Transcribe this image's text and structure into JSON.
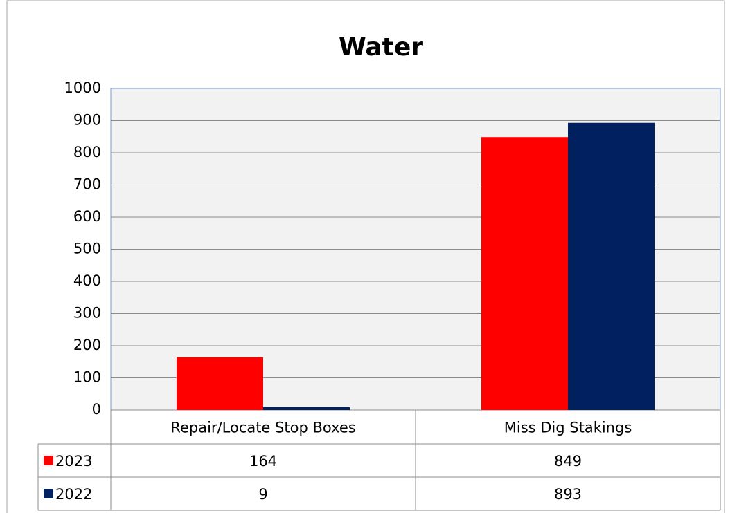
{
  "chart_data": {
    "type": "bar",
    "title": "Water",
    "categories": [
      "Repair/Locate Stop Boxes",
      "Miss Dig Stakings"
    ],
    "series": [
      {
        "name": "2023",
        "color": "#ff0000",
        "values": [
          164,
          849
        ]
      },
      {
        "name": "2022",
        "color": "#002060",
        "values": [
          9,
          893
        ]
      }
    ],
    "ylim": [
      0,
      1000
    ],
    "yticks": [
      0,
      100,
      200,
      300,
      400,
      500,
      600,
      700,
      800,
      900,
      1000
    ],
    "grid": true
  }
}
